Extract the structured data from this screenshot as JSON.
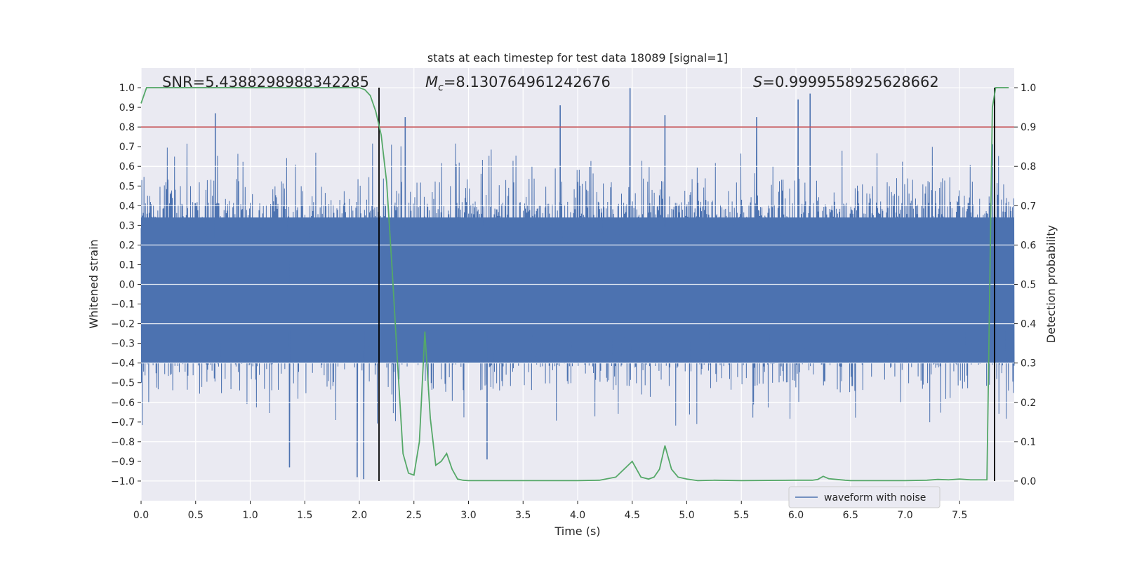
{
  "chart_data": {
    "type": "line",
    "title": "stats at each timestep for test data 18089 [signal=1]",
    "xlabel": "Time (s)",
    "ylabel_left": "Whitened strain",
    "ylabel_right": "Detection probability",
    "xlim": [
      0,
      8
    ],
    "ylim_left": [
      -1.1,
      1.1
    ],
    "ylim_right": [
      -0.05,
      1.05
    ],
    "xticks": [
      0.0,
      0.5,
      1.0,
      1.5,
      2.0,
      2.5,
      3.0,
      3.5,
      4.0,
      4.5,
      5.0,
      5.5,
      6.0,
      6.5,
      7.0,
      7.5
    ],
    "xtick_labels": [
      "0.0",
      "0.5",
      "1.0",
      "1.5",
      "2.0",
      "2.5",
      "3.0",
      "3.5",
      "4.0",
      "4.5",
      "5.0",
      "5.5",
      "6.0",
      "6.5",
      "7.0",
      "7.5"
    ],
    "yticks_left": [
      1.0,
      0.9,
      0.8,
      0.7,
      0.6,
      0.5,
      0.4,
      0.3,
      0.2,
      0.1,
      0.0,
      -0.1,
      -0.2,
      -0.3,
      -0.4,
      -0.5,
      -0.6,
      -0.7,
      -0.8,
      -0.9,
      -1.0
    ],
    "ytick_labels_left": [
      "1.0",
      "0.9",
      "0.8",
      "0.7",
      "0.6",
      "0.5",
      "0.4",
      "0.3",
      "0.2",
      "0.1",
      "0.0",
      "−0.1",
      "−0.2",
      "−0.3",
      "−0.4",
      "−0.5",
      "−0.6",
      "−0.7",
      "−0.8",
      "−0.9",
      "−1.0"
    ],
    "yticks_right": [
      1.0,
      0.9,
      0.8,
      0.7,
      0.6,
      0.5,
      0.4,
      0.3,
      0.2,
      0.1,
      0.0
    ],
    "ytick_labels_right": [
      "1.0",
      "0.9",
      "0.8",
      "0.7",
      "0.6",
      "0.5",
      "0.4",
      "0.3",
      "0.2",
      "0.1",
      "0.0"
    ],
    "annotations": {
      "snr": "SNR=5.438829898834228 5",
      "mc_symbol": "M",
      "mc_sub": "c",
      "mc_value": "=8.130764961242676",
      "s_symbol": "S",
      "s_value": "=0.9999558925628662"
    },
    "threshold": {
      "value": 0.9,
      "axis": "right",
      "color": "#c44e52"
    },
    "vertical_lines": [
      2.18,
      7.82
    ],
    "legend": {
      "label": "waveform with noise",
      "placement": "lower-right",
      "color": "#4c72b0"
    },
    "series": [
      {
        "name": "waveform with noise",
        "axis": "left",
        "color": "#4c72b0",
        "kind": "noise",
        "envelope_typical": 0.42,
        "notable_peaks": [
          {
            "t": 0.68,
            "v": 0.87
          },
          {
            "t": 2.42,
            "v": 0.85
          },
          {
            "t": 3.84,
            "v": 0.91
          },
          {
            "t": 4.48,
            "v": 1.0
          },
          {
            "t": 4.8,
            "v": 0.86
          },
          {
            "t": 5.64,
            "v": 0.85
          },
          {
            "t": 6.02,
            "v": 0.94
          },
          {
            "t": 6.13,
            "v": 0.97
          },
          {
            "t": 1.36,
            "v": -0.93
          },
          {
            "t": 1.98,
            "v": -0.98
          },
          {
            "t": 2.04,
            "v": -0.99
          },
          {
            "t": 3.17,
            "v": -0.89
          }
        ]
      },
      {
        "name": "detection probability",
        "axis": "right",
        "color": "#55a868",
        "t": [
          0.0,
          0.05,
          0.1,
          0.2,
          0.4,
          0.6,
          0.8,
          1.0,
          1.2,
          1.4,
          1.6,
          1.8,
          2.0,
          2.05,
          2.1,
          2.15,
          2.2,
          2.25,
          2.3,
          2.35,
          2.4,
          2.45,
          2.5,
          2.55,
          2.6,
          2.65,
          2.7,
          2.75,
          2.8,
          2.85,
          2.9,
          2.95,
          3.0,
          3.05,
          3.1,
          3.3,
          3.5,
          3.75,
          3.9,
          4.0,
          4.2,
          4.35,
          4.5,
          4.58,
          4.65,
          4.7,
          4.75,
          4.8,
          4.86,
          4.92,
          5.0,
          5.1,
          5.25,
          5.5,
          6.0,
          6.15,
          6.2,
          6.25,
          6.3,
          6.45,
          6.5,
          7.0,
          7.2,
          7.3,
          7.4,
          7.5,
          7.6,
          7.75,
          7.8,
          7.83,
          7.86,
          7.9,
          7.95
        ],
        "values": [
          0.96,
          1.0,
          1.0,
          1.0,
          1.0,
          1.0,
          1.0,
          1.0,
          1.0,
          1.0,
          1.0,
          1.0,
          1.0,
          0.995,
          0.98,
          0.94,
          0.88,
          0.76,
          0.54,
          0.3,
          0.07,
          0.02,
          0.015,
          0.1,
          0.38,
          0.16,
          0.04,
          0.05,
          0.07,
          0.03,
          0.005,
          0.002,
          0.001,
          0.001,
          0.001,
          0.001,
          0.001,
          0.001,
          0.001,
          0.001,
          0.002,
          0.01,
          0.05,
          0.01,
          0.005,
          0.01,
          0.03,
          0.09,
          0.03,
          0.01,
          0.005,
          0.001,
          0.002,
          0.001,
          0.002,
          0.002,
          0.004,
          0.012,
          0.006,
          0.002,
          0.001,
          0.001,
          0.002,
          0.004,
          0.003,
          0.005,
          0.003,
          0.003,
          0.95,
          1.0,
          1.0,
          1.0,
          1.0
        ]
      }
    ]
  }
}
